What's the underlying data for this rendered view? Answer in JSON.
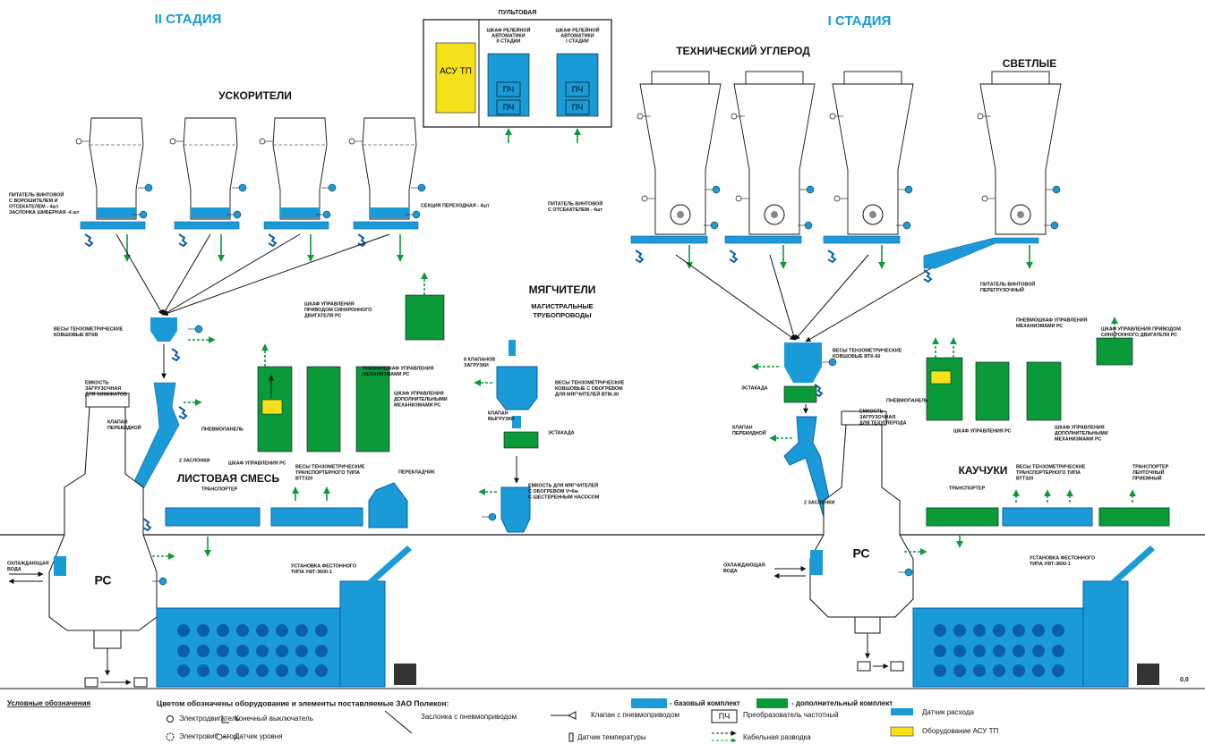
{
  "stages": {
    "stage_2": "II СТАДИЯ",
    "stage_1": "I СТАДИЯ"
  },
  "control_room": {
    "title": "ПУЛЬТОВАЯ",
    "asu": "АСУ ТП",
    "cabinet_stage_2": [
      "ШКАФ РЕЛЕЙНОЙ",
      "АВТОМАТИКИ",
      "II СТАДИИ"
    ],
    "cabinet_stage_1": [
      "ШКАФ РЕЛЕЙНОЙ",
      "АВТОМАТИКИ",
      "I СТАДИИ"
    ],
    "vfd": "ПЧ"
  },
  "sections": [
    "УСКОРИТЕЛИ",
    "ТЕХНИЧЕСКИЙ УГЛЕРОД",
    "СВЕТЛЫЕ",
    "МЯГЧИТЕЛИ",
    "ЛИСТОВАЯ СМЕСЬ",
    "КАУЧУКИ"
  ],
  "pipelines": [
    "МАГИСТРАЛЬНЫЕ",
    "ТРУБОПРОВОДЫ"
  ],
  "mixer": "РС",
  "labels": [
    [
      "ПИТАТЕЛЬ ВИНТОВОЙ",
      "С ВОРОШИТЕЛЕМ И",
      "ОТСЕКАТЕЛЕМ - 4шт",
      "ЗАСЛОНКА ШИБЕРНАЯ -4 шт"
    ],
    [
      "СЕКЦИЯ ПЕРЕХОДНАЯ - 4шт"
    ],
    [
      "ВЕСЫ ТЕНЗОМЕТРИЧЕСКИЕ",
      "КОВШОВЫЕ ВТКВ"
    ],
    [
      "ЕМКОСТЬ",
      "ЗАГРУЗОЧНАЯ",
      "ДЛЯ ХИМИКАТОВ"
    ],
    [
      "КЛАПАН",
      "ПЕРЕКИДНОЙ"
    ],
    [
      "2 ЗАСЛОНКИ"
    ],
    [
      "ШКАФ УПРАВЛЕНИЯ",
      "ПРИВОДОМ СИНХРОННОГО",
      "ДВИГАТЕЛЯ РС"
    ],
    [
      "ПНЕВМОШКАФ УПРАВЛЕНИЯ",
      "МЕХАНИЗМАМИ РС"
    ],
    [
      "ШКАФ УПРАВЛЕНИЯ",
      "ДОПОЛНИТЕЛЬНЫМИ",
      "МЕХАНИЗМАМИ РС"
    ],
    [
      "ПНЕВМОПАНЕЛЬ"
    ],
    [
      "ШКАФ УПРАВЛЕНИЯ РС"
    ],
    [
      "ВЕСЫ ТЕНЗОМЕТРИЧЕСКИЕ",
      "ТРАНСПОРТЕРНОГО ТИПА",
      "ВТТ320"
    ],
    [
      "ПЕРЕКЛАДЧИК"
    ],
    [
      "ТРАНСПОРТЕР"
    ],
    [
      "ОХЛАЖДАЮЩАЯ",
      "ВОДА"
    ],
    [
      "УСТАНОВКА ФЕСТОННОГО",
      "ТИПА УФТ-3600-1"
    ],
    [
      "8 КЛАПАНОВ",
      "ЗАГРУЗКИ"
    ],
    [
      "ВЕСЫ ТЕНЗОМЕТРИЧЕСКИЕ",
      "КОВШОВЫЕ С ОБОГРЕВОМ",
      "ДЛЯ МЯГЧИТЕЛЕЙ ВТМ-30"
    ],
    [
      "КЛАПАН",
      "ВЫГРУЗКИ"
    ],
    [
      "ЭСТАКАДА"
    ],
    [
      "ЕМКОСТЬ ДЛЯ МЯГЧИТЕЛЕЙ",
      "С ОБОГРЕВОМ V=6м",
      "С ШЕСТЕРЕННЫМ НАСОСОМ"
    ],
    [
      "ПИТАТЕЛЬ ВИНТОВОЙ",
      "С ОТСЕКАТЕЛЕМ - 4шт"
    ],
    [
      "ПИТАТЕЛЬ ВИНТОВОЙ",
      "ПЕРЕГРУЗОЧНЫЙ"
    ],
    [
      "ШКАФ УПРАВЛЕНИЯ ПРИВОДОМ",
      "СИНХРОННОГО ДВИГАТЕЛЯ РС"
    ],
    [
      "ПНЕВМОШКАФ УПРАВЛЕНИЯ",
      "МЕХАНИЗМАМИ РС"
    ],
    [
      "ВЕСЫ ТЕНЗОМЕТРИЧЕСКИЕ",
      "КОВШОВЫЕ ВТК-60"
    ],
    [
      "ЭСТАКАДА"
    ],
    [
      "ПНЕВМОПАНЕЛЬ"
    ],
    [
      "ЕМКОСТЬ",
      "ЗАГРУЗОЧНАЯ",
      "ДЛЯ ТЕХУГЛЕРОДА"
    ],
    [
      "КЛАПАН",
      "ПЕРЕКИДНОЙ"
    ],
    [
      "ШКАФ УПРАВЛЕНИЯ РС"
    ],
    [
      "ШКАФ УПРАВЛЕНИЯ",
      "ДОПОЛНИТЕЛЬНЫМИ",
      "МЕХАНИЗМАМИ РС"
    ],
    [
      "ТРАНСПОРТЕР"
    ],
    [
      "ВЕСЫ ТЕНЗОМЕТРИЧЕСКИЕ",
      "ТРАНСПОРТЕРНОГО ТИПА",
      "ВТТ320"
    ],
    [
      "ТРАНСПОРТЕР",
      "ЛЕНТОЧНЫЙ",
      "ПРИЕМНЫЙ"
    ],
    [
      "2 ЗАСЛОНКИ"
    ],
    [
      "ОХЛАЖДАЮЩАЯ",
      "ВОДА"
    ],
    [
      "УСТАНОВКА ФЕСТОННОГО",
      "ТИПА УФТ-3600-1"
    ]
  ],
  "level_mark": "0,0",
  "legend": {
    "title": "Условные обозначения",
    "note": "Цветом обозначены оборудование и элементы поставляемые ЗАО Поликон:",
    "base": "- базовый комплект",
    "extra": "- дополнительный комплект",
    "items": [
      "Электродвигатель",
      "Электровибратор",
      "Конечный выключатель",
      "Датчик уровня",
      "Заслонка с пневмоприводом",
      "Клапан с пневмоприводом",
      "Датчик температуры",
      "Преобразователь частотный",
      "Кабельная разводка",
      "Датчик расхода",
      "Оборудование АСУ ТП"
    ]
  }
}
